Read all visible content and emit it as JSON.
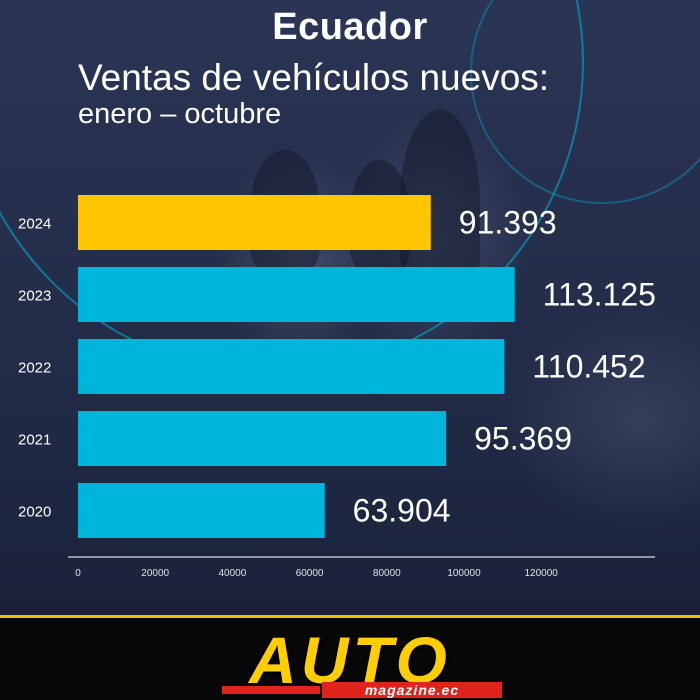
{
  "header": {
    "title": "Ecuador",
    "subtitle_line1": "Ventas de vehículos nuevos:",
    "subtitle_line2": "enero – octubre"
  },
  "chart_data": {
    "type": "bar",
    "orientation": "horizontal",
    "categories": [
      "2024",
      "2023",
      "2022",
      "2021",
      "2020"
    ],
    "values": [
      91393,
      113125,
      110452,
      95369,
      63904
    ],
    "value_labels": [
      "91.393",
      "113.125",
      "110.452",
      "95.369",
      "63.904"
    ],
    "bar_colors": [
      "#ffc600",
      "#00b5dc",
      "#00b5dc",
      "#00b5dc",
      "#00b5dc"
    ],
    "xticks": [
      0,
      20000,
      40000,
      60000,
      80000,
      100000,
      120000
    ],
    "xtick_labels": [
      "0",
      "20000",
      "40000",
      "60000",
      "80000",
      "100000",
      "120000"
    ],
    "xlim": [
      0,
      150000
    ],
    "grid": false,
    "title": "Ecuador",
    "xlabel": "",
    "ylabel": ""
  },
  "footer": {
    "brand": "AUTO",
    "brand_sub": "magazine.ec"
  }
}
